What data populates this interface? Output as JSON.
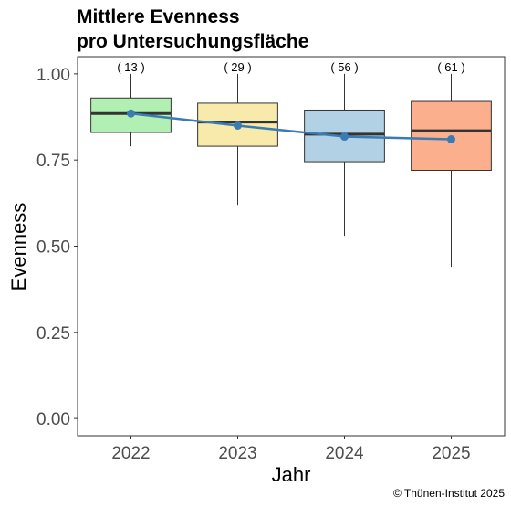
{
  "chart_data": {
    "type": "box",
    "title": "Mittlere Evenness",
    "subtitle": "pro Untersuchungsfläche",
    "xlabel": "Jahr",
    "ylabel": "Evenness",
    "ylim": [
      -0.05,
      1.05
    ],
    "yticks": [
      "0.00",
      "0.25",
      "0.50",
      "0.75",
      "1.00"
    ],
    "ytick_values": [
      0,
      0.25,
      0.5,
      0.75,
      1.0
    ],
    "categories": [
      "2022",
      "2023",
      "2024",
      "2025"
    ],
    "boxes": [
      {
        "category": "2022",
        "count_label": "( 13 )",
        "min": 0.79,
        "q1": 0.83,
        "median": 0.885,
        "q3": 0.93,
        "max": 1.0,
        "color": "#b2efb2"
      },
      {
        "category": "2023",
        "count_label": "( 29 )",
        "min": 0.62,
        "q1": 0.79,
        "median": 0.86,
        "q3": 0.915,
        "max": 1.0,
        "color": "#f7eaaa"
      },
      {
        "category": "2024",
        "count_label": "( 56 )",
        "min": 0.53,
        "q1": 0.745,
        "median": 0.825,
        "q3": 0.895,
        "max": 1.0,
        "color": "#b3d1e5"
      },
      {
        "category": "2025",
        "count_label": "( 61 )",
        "min": 0.44,
        "q1": 0.72,
        "median": 0.835,
        "q3": 0.92,
        "max": 1.0,
        "color": "#fcaf8c"
      }
    ],
    "mean_series": {
      "values": [
        0.885,
        0.85,
        0.818,
        0.81
      ],
      "color": "#3a7bb3"
    },
    "grid": false,
    "credit": "© Thünen-Institut 2025"
  }
}
